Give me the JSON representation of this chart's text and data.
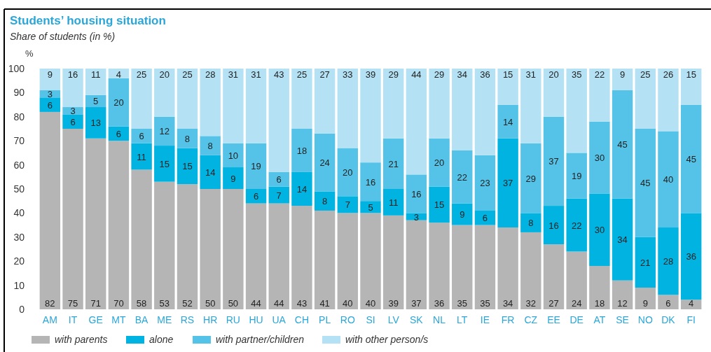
{
  "chart_data": {
    "type": "bar",
    "title": "Students’ housing situation",
    "subtitle": "Share of students (in %)",
    "ylabel": "%",
    "stacked": true,
    "data_labels": true,
    "legend": "bottom",
    "categories": [
      "AM",
      "IT",
      "GE",
      "MT",
      "BA",
      "ME",
      "RS",
      "HR",
      "RU",
      "HU",
      "UA",
      "CH",
      "PL",
      "RO",
      "SI",
      "LV",
      "SK",
      "NL",
      "LT",
      "IE",
      "FR",
      "CZ",
      "EE",
      "DE",
      "AT",
      "SE",
      "NO",
      "DK",
      "FI"
    ],
    "ylim": [
      0,
      100
    ],
    "yticks": [
      0,
      10,
      20,
      30,
      40,
      50,
      60,
      70,
      80,
      90,
      100
    ],
    "series": [
      {
        "name": "with parents",
        "color": "#b5b5b5",
        "values": [
          82,
          75,
          71,
          70,
          58,
          53,
          52,
          50,
          50,
          44,
          44,
          43,
          41,
          40,
          40,
          39,
          37,
          36,
          35,
          35,
          34,
          32,
          27,
          24,
          18,
          12,
          9,
          6,
          4
        ]
      },
      {
        "name": "alone",
        "color": "#00b3e0",
        "values": [
          6,
          6,
          13,
          6,
          11,
          15,
          15,
          14,
          9,
          6,
          7,
          14,
          8,
          7,
          5,
          11,
          3,
          15,
          9,
          6,
          37,
          8,
          16,
          22,
          30,
          34,
          21,
          28,
          36
        ]
      },
      {
        "name": "with partner/children",
        "color": "#55c3e8",
        "values": [
          3,
          3,
          5,
          20,
          6,
          12,
          8,
          8,
          10,
          19,
          6,
          18,
          24,
          20,
          16,
          21,
          16,
          20,
          22,
          23,
          14,
          29,
          37,
          19,
          30,
          45,
          45,
          40,
          45
        ]
      },
      {
        "name": "with other person/s",
        "color": "#b4e2f4",
        "values": [
          9,
          16,
          11,
          4,
          25,
          20,
          25,
          28,
          31,
          31,
          43,
          25,
          27,
          33,
          39,
          29,
          44,
          29,
          34,
          36,
          15,
          31,
          20,
          35,
          22,
          9,
          25,
          26,
          15
        ]
      }
    ]
  }
}
